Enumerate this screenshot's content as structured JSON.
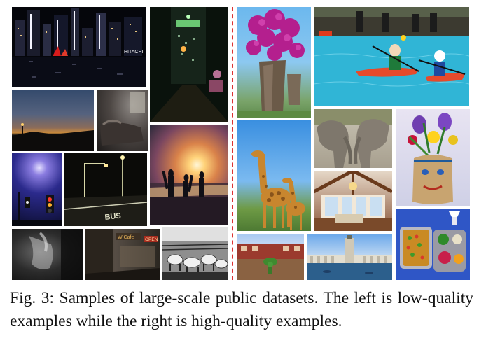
{
  "caption": "Fig. 3: Samples of large-scale public datasets. The left is low-quality examples while the right is high-quality examples.",
  "sign_text": {
    "hitachi": "HITACHI",
    "bus": "BUS",
    "wcafe": "W Cafe",
    "open": "OPEN"
  },
  "colors": {
    "divider": "#dd3333",
    "caption_text": "#111111"
  }
}
